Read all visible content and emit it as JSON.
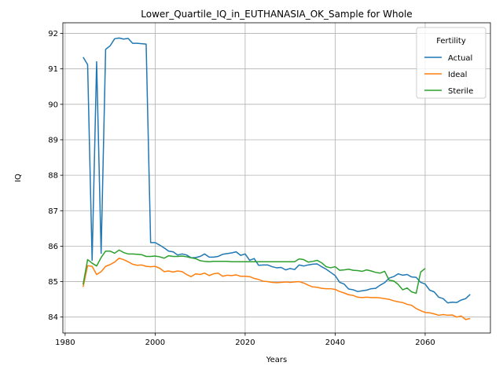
{
  "chart_data": {
    "type": "line",
    "title": "Lower_Quartile_IQ_in_EUTHANASIA_OK_Sample for Whole",
    "xlabel": "Years",
    "ylabel": "IQ",
    "xlim": [
      1979.5,
      2074.5
    ],
    "ylim": [
      83.55,
      92.3
    ],
    "xticks": [
      1980,
      2000,
      2020,
      2040,
      2060
    ],
    "yticks": [
      84,
      85,
      86,
      87,
      88,
      89,
      90,
      91,
      92
    ],
    "grid": true,
    "legend": {
      "title": "Fertility",
      "placement": "top-right"
    },
    "series": [
      {
        "name": "Actual",
        "color": "#1f77b4",
        "points": [
          [
            1984,
            91.33
          ],
          [
            1985,
            91.12
          ],
          [
            1986,
            85.6
          ],
          [
            1987,
            91.2
          ],
          [
            1988,
            85.8
          ],
          [
            1989,
            91.55
          ],
          [
            1990,
            91.65
          ],
          [
            1991,
            91.85
          ],
          [
            1992,
            91.87
          ],
          [
            1993,
            91.84
          ],
          [
            1994,
            91.86
          ],
          [
            1995,
            91.72
          ],
          [
            1996,
            91.72
          ],
          [
            1997,
            91.71
          ],
          [
            1998,
            91.7
          ],
          [
            1999,
            86.1
          ],
          [
            2000,
            86.1
          ],
          [
            2001,
            86.03
          ],
          [
            2002,
            85.95
          ],
          [
            2003,
            85.86
          ],
          [
            2004,
            85.84
          ],
          [
            2005,
            85.75
          ],
          [
            2006,
            85.78
          ],
          [
            2007,
            85.75
          ],
          [
            2008,
            85.67
          ],
          [
            2009,
            85.68
          ],
          [
            2010,
            85.71
          ],
          [
            2011,
            85.78
          ],
          [
            2012,
            85.69
          ],
          [
            2013,
            85.69
          ],
          [
            2014,
            85.71
          ],
          [
            2015,
            85.77
          ],
          [
            2016,
            85.79
          ],
          [
            2017,
            85.81
          ],
          [
            2018,
            85.84
          ],
          [
            2019,
            85.74
          ],
          [
            2020,
            85.78
          ],
          [
            2021,
            85.6
          ],
          [
            2022,
            85.65
          ],
          [
            2023,
            85.46
          ],
          [
            2024,
            85.47
          ],
          [
            2025,
            85.47
          ],
          [
            2026,
            85.42
          ],
          [
            2027,
            85.39
          ],
          [
            2028,
            85.4
          ],
          [
            2029,
            85.33
          ],
          [
            2030,
            85.37
          ],
          [
            2031,
            85.34
          ],
          [
            2032,
            85.47
          ],
          [
            2033,
            85.44
          ],
          [
            2034,
            85.47
          ],
          [
            2035,
            85.49
          ],
          [
            2036,
            85.5
          ],
          [
            2037,
            85.42
          ],
          [
            2038,
            85.35
          ],
          [
            2039,
            85.26
          ],
          [
            2040,
            85.17
          ],
          [
            2041,
            84.98
          ],
          [
            2042,
            84.93
          ],
          [
            2043,
            84.79
          ],
          [
            2044,
            84.77
          ],
          [
            2045,
            84.72
          ],
          [
            2046,
            84.74
          ],
          [
            2047,
            84.76
          ],
          [
            2048,
            84.8
          ],
          [
            2049,
            84.81
          ],
          [
            2050,
            84.9
          ],
          [
            2051,
            84.97
          ],
          [
            2052,
            85.1
          ],
          [
            2053,
            85.14
          ],
          [
            2054,
            85.22
          ],
          [
            2055,
            85.18
          ],
          [
            2056,
            85.2
          ],
          [
            2057,
            85.13
          ],
          [
            2058,
            85.12
          ],
          [
            2059,
            84.98
          ],
          [
            2060,
            84.93
          ],
          [
            2061,
            84.76
          ],
          [
            2062,
            84.71
          ],
          [
            2063,
            84.56
          ],
          [
            2064,
            84.52
          ],
          [
            2065,
            84.4
          ],
          [
            2066,
            84.42
          ],
          [
            2067,
            84.41
          ],
          [
            2068,
            84.48
          ],
          [
            2069,
            84.52
          ],
          [
            2070,
            84.64
          ]
        ]
      },
      {
        "name": "Ideal",
        "color": "#ff7f0e",
        "points": [
          [
            1984,
            84.85
          ],
          [
            1985,
            85.45
          ],
          [
            1986,
            85.43
          ],
          [
            1987,
            85.2
          ],
          [
            1988,
            85.28
          ],
          [
            1989,
            85.43
          ],
          [
            1990,
            85.48
          ],
          [
            1991,
            85.55
          ],
          [
            1992,
            85.66
          ],
          [
            1993,
            85.62
          ],
          [
            1994,
            85.56
          ],
          [
            1995,
            85.49
          ],
          [
            1996,
            85.46
          ],
          [
            1997,
            85.47
          ],
          [
            1998,
            85.43
          ],
          [
            1999,
            85.42
          ],
          [
            2000,
            85.43
          ],
          [
            2001,
            85.38
          ],
          [
            2002,
            85.28
          ],
          [
            2003,
            85.3
          ],
          [
            2004,
            85.27
          ],
          [
            2005,
            85.3
          ],
          [
            2006,
            85.28
          ],
          [
            2007,
            85.2
          ],
          [
            2008,
            85.14
          ],
          [
            2009,
            85.22
          ],
          [
            2010,
            85.2
          ],
          [
            2011,
            85.24
          ],
          [
            2012,
            85.17
          ],
          [
            2013,
            85.22
          ],
          [
            2014,
            85.24
          ],
          [
            2015,
            85.15
          ],
          [
            2016,
            85.18
          ],
          [
            2017,
            85.17
          ],
          [
            2018,
            85.19
          ],
          [
            2019,
            85.15
          ],
          [
            2020,
            85.15
          ],
          [
            2021,
            85.14
          ],
          [
            2022,
            85.09
          ],
          [
            2023,
            85.06
          ],
          [
            2024,
            85.01
          ],
          [
            2025,
            85.0
          ],
          [
            2026,
            84.98
          ],
          [
            2027,
            84.97
          ],
          [
            2028,
            84.98
          ],
          [
            2029,
            84.99
          ],
          [
            2030,
            84.98
          ],
          [
            2031,
            84.99
          ],
          [
            2032,
            85.0
          ],
          [
            2033,
            84.96
          ],
          [
            2034,
            84.9
          ],
          [
            2035,
            84.85
          ],
          [
            2036,
            84.84
          ],
          [
            2037,
            84.81
          ],
          [
            2038,
            84.8
          ],
          [
            2039,
            84.8
          ],
          [
            2040,
            84.78
          ],
          [
            2041,
            84.72
          ],
          [
            2042,
            84.68
          ],
          [
            2043,
            84.63
          ],
          [
            2044,
            84.61
          ],
          [
            2045,
            84.56
          ],
          [
            2046,
            84.55
          ],
          [
            2047,
            84.56
          ],
          [
            2048,
            84.55
          ],
          [
            2049,
            84.55
          ],
          [
            2050,
            84.54
          ],
          [
            2051,
            84.52
          ],
          [
            2052,
            84.5
          ],
          [
            2053,
            84.46
          ],
          [
            2054,
            84.43
          ],
          [
            2055,
            84.41
          ],
          [
            2056,
            84.36
          ],
          [
            2057,
            84.33
          ],
          [
            2058,
            84.24
          ],
          [
            2059,
            84.18
          ],
          [
            2060,
            84.13
          ],
          [
            2061,
            84.12
          ],
          [
            2062,
            84.09
          ],
          [
            2063,
            84.05
          ],
          [
            2064,
            84.07
          ],
          [
            2065,
            84.05
          ],
          [
            2066,
            84.06
          ],
          [
            2067,
            84.0
          ],
          [
            2068,
            84.03
          ],
          [
            2069,
            83.93
          ],
          [
            2070,
            83.96
          ]
        ]
      },
      {
        "name": "Sterile",
        "color": "#2ca02c",
        "points": [
          [
            1984,
            84.92
          ],
          [
            1985,
            85.62
          ],
          [
            1986,
            85.52
          ],
          [
            1987,
            85.44
          ],
          [
            1988,
            85.68
          ],
          [
            1989,
            85.86
          ],
          [
            1990,
            85.86
          ],
          [
            1991,
            85.8
          ],
          [
            1992,
            85.89
          ],
          [
            1993,
            85.82
          ],
          [
            1994,
            85.78
          ],
          [
            1995,
            85.78
          ],
          [
            1996,
            85.77
          ],
          [
            1997,
            85.76
          ],
          [
            1998,
            85.71
          ],
          [
            1999,
            85.71
          ],
          [
            2000,
            85.72
          ],
          [
            2001,
            85.7
          ],
          [
            2002,
            85.66
          ],
          [
            2003,
            85.73
          ],
          [
            2004,
            85.71
          ],
          [
            2005,
            85.71
          ],
          [
            2006,
            85.72
          ],
          [
            2007,
            85.7
          ],
          [
            2008,
            85.67
          ],
          [
            2009,
            85.65
          ],
          [
            2010,
            85.59
          ],
          [
            2011,
            85.57
          ],
          [
            2012,
            85.56
          ],
          [
            2013,
            85.57
          ],
          [
            2014,
            85.57
          ],
          [
            2015,
            85.57
          ],
          [
            2016,
            85.57
          ],
          [
            2017,
            85.56
          ],
          [
            2018,
            85.56
          ],
          [
            2019,
            85.56
          ],
          [
            2020,
            85.56
          ],
          [
            2021,
            85.56
          ],
          [
            2022,
            85.56
          ],
          [
            2023,
            85.56
          ],
          [
            2024,
            85.56
          ],
          [
            2025,
            85.56
          ],
          [
            2026,
            85.56
          ],
          [
            2027,
            85.56
          ],
          [
            2028,
            85.56
          ],
          [
            2029,
            85.56
          ],
          [
            2030,
            85.56
          ],
          [
            2031,
            85.56
          ],
          [
            2032,
            85.64
          ],
          [
            2033,
            85.62
          ],
          [
            2034,
            85.55
          ],
          [
            2035,
            85.57
          ],
          [
            2036,
            85.6
          ],
          [
            2037,
            85.53
          ],
          [
            2038,
            85.42
          ],
          [
            2039,
            85.39
          ],
          [
            2040,
            85.42
          ],
          [
            2041,
            85.32
          ],
          [
            2042,
            85.33
          ],
          [
            2043,
            85.35
          ],
          [
            2044,
            85.32
          ],
          [
            2045,
            85.31
          ],
          [
            2046,
            85.29
          ],
          [
            2047,
            85.33
          ],
          [
            2048,
            85.3
          ],
          [
            2049,
            85.26
          ],
          [
            2050,
            85.24
          ],
          [
            2051,
            85.29
          ],
          [
            2052,
            85.04
          ],
          [
            2053,
            85.02
          ],
          [
            2054,
            84.92
          ],
          [
            2055,
            84.77
          ],
          [
            2056,
            84.82
          ],
          [
            2057,
            84.71
          ],
          [
            2058,
            84.67
          ],
          [
            2059,
            85.27
          ],
          [
            2060,
            85.37
          ]
        ]
      }
    ]
  }
}
